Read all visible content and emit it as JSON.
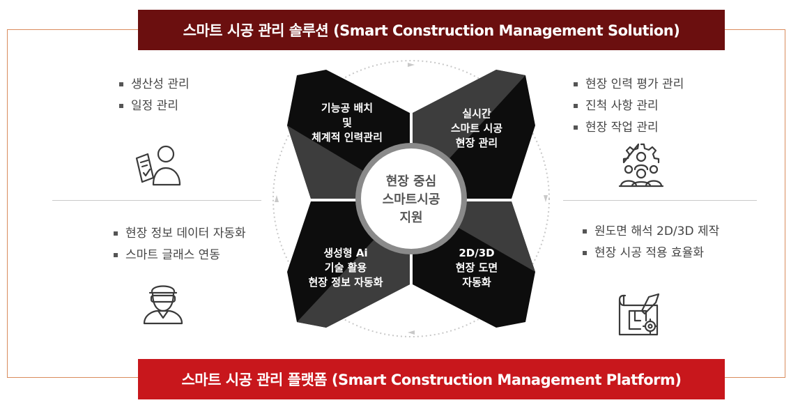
{
  "banners": {
    "top": "스마트 시공 관리 솔루션 (Smart Construction Management Solution)",
    "bottom": "스마트 시공 관리 플랫폼 (Smart Construction Management Platform)"
  },
  "left_top_items": [
    "생산성 관리",
    "일정 관리"
  ],
  "right_top_items": [
    "현장 인력 평가 관리",
    "진척 사항 관리",
    "현장 작업 관리"
  ],
  "left_bottom_items": [
    "현장 정보 데이터 자동화",
    "스마트 글래스 연동"
  ],
  "right_bottom_items": [
    "원도면 해석 2D/3D  제작",
    "현장 시공 적용 효율화"
  ],
  "center": {
    "lines": [
      "현장 중심",
      "스마트시공",
      "지원"
    ]
  },
  "quadrants": {
    "top_left": [
      "기능공 배치",
      "및",
      "체계적 인력관리"
    ],
    "top_right": [
      "실시간",
      "스마트 시공",
      "현장 관리"
    ],
    "bottom_left": [
      "생성형 Ai",
      "기술 활용",
      "현장 정보 자동화"
    ],
    "bottom_right": [
      "2D/3D",
      "현장 도면",
      "자동화"
    ]
  },
  "icons": {
    "left_top": "worker-checklist-icon",
    "right_top": "team-gear-icon",
    "left_bottom": "worker-smart-glasses-icon",
    "right_bottom": "blueprint-icon"
  },
  "colors": {
    "banner_top": "#6b0f0f",
    "banner_bottom": "#c8171c",
    "frame": "#d98b5c",
    "quadrant_dark": "#0d0d0d",
    "quadrant_mid": "#3d3d3d"
  }
}
